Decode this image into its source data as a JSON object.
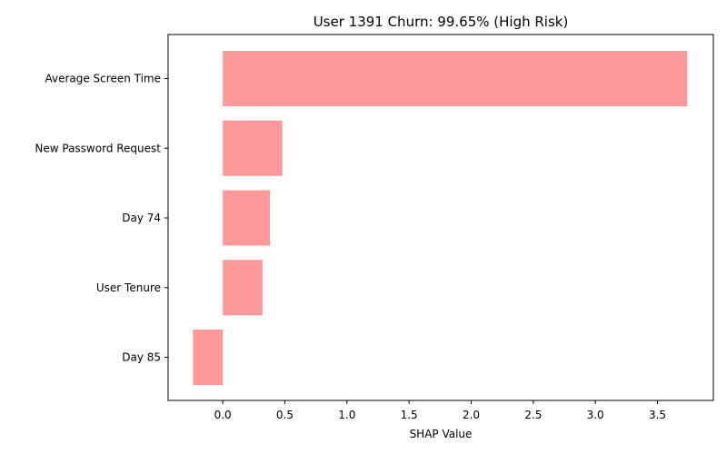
{
  "chart_data": {
    "type": "bar",
    "orientation": "horizontal",
    "title": "User 1391 Churn: 99.65% (High Risk)",
    "xlabel": "SHAP Value",
    "ylabel": "",
    "categories": [
      "Average Screen Time",
      "New Password Request",
      "Day 74",
      "User Tenure",
      "Day 85"
    ],
    "values": [
      3.74,
      0.48,
      0.38,
      0.32,
      -0.24
    ],
    "xlim": [
      -0.44,
      3.95
    ],
    "xticks": [
      "0.0",
      "0.5",
      "1.0",
      "1.5",
      "2.0",
      "2.5",
      "3.0",
      "3.5"
    ],
    "bar_color": "#ff9999",
    "grid": false
  }
}
